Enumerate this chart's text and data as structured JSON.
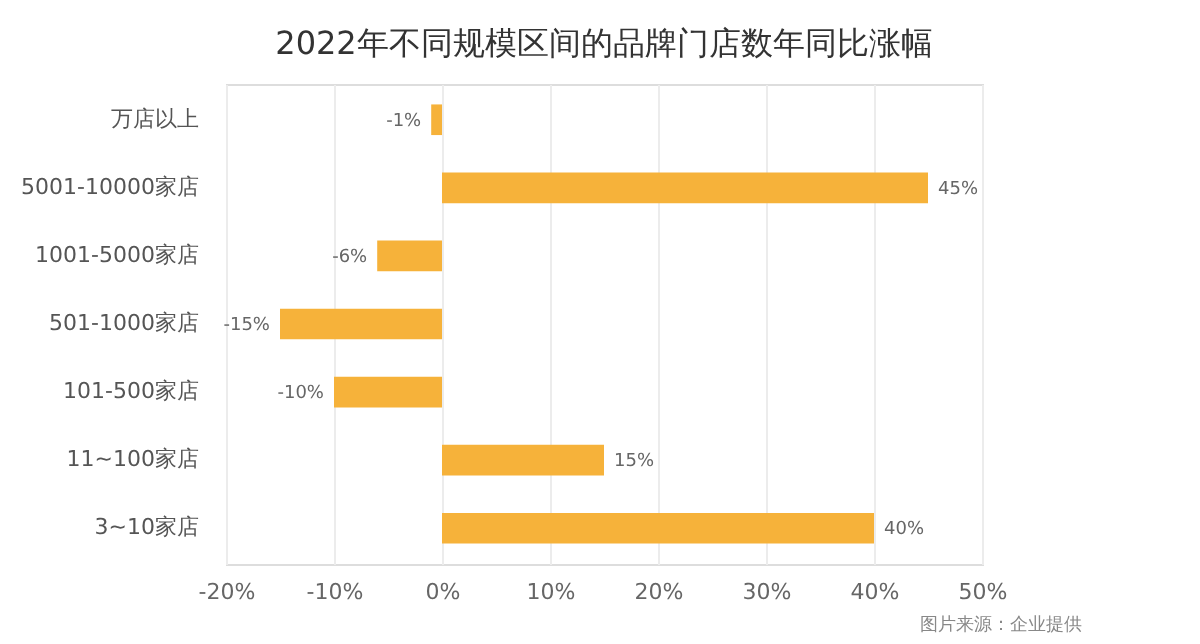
{
  "chart_data": {
    "type": "bar",
    "orientation": "horizontal",
    "title": "2022年不同规模区间的品牌门店数年同比涨幅",
    "categories": [
      "万店以上",
      "5001-10000家店",
      "1001-5000家店",
      "501-1000家店",
      "101-500家店",
      "11~100家店",
      "3~10家店"
    ],
    "values": [
      -1,
      45,
      -6,
      -15,
      -10,
      15,
      40
    ],
    "value_labels": [
      "-1%",
      "45%",
      "-6%",
      "-15%",
      "-10%",
      "15%",
      "40%"
    ],
    "color": "#f6b23a",
    "xlim": [
      -20,
      50
    ],
    "xticks": [
      {
        "value": -20,
        "label": "-20%"
      },
      {
        "value": -10,
        "label": "-10%"
      },
      {
        "value": 0,
        "label": "0%"
      },
      {
        "value": 10,
        "label": "10%"
      },
      {
        "value": 20,
        "label": "20%"
      },
      {
        "value": 30,
        "label": "30%"
      },
      {
        "value": 40,
        "label": "40%"
      },
      {
        "value": 50,
        "label": "50%"
      }
    ],
    "grid": "x",
    "annotations": [
      "图片来源：企业提供"
    ]
  }
}
